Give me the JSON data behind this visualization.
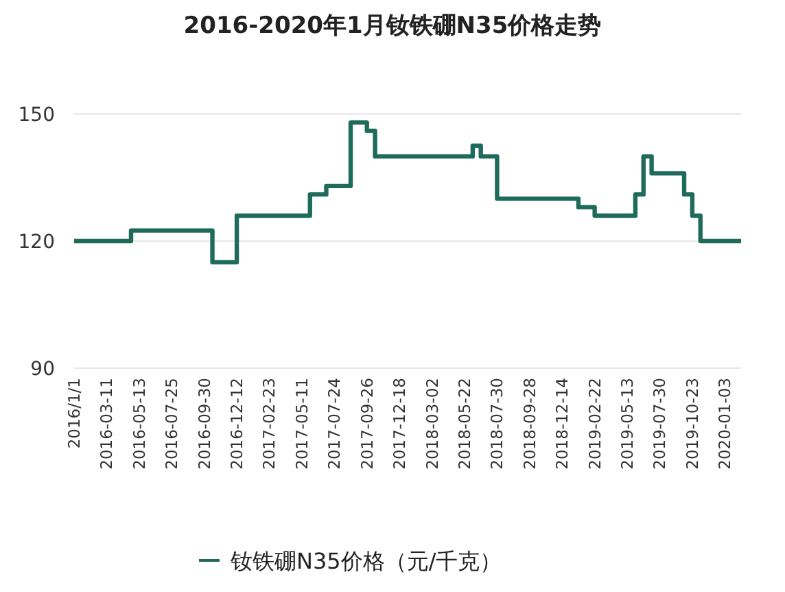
{
  "chart_data": {
    "type": "step",
    "title": "2016-2020年1月钕铁硼N35价格走势",
    "categories": [
      "2016/1/1",
      null,
      null,
      null,
      "2016-03-11",
      null,
      null,
      null,
      "2016-05-13",
      null,
      null,
      null,
      "2016-07-25",
      null,
      null,
      null,
      "2016-09-30",
      null,
      null,
      null,
      "2016-12-12",
      null,
      null,
      null,
      "2017-02-23",
      null,
      null,
      null,
      "2017-05-11",
      null,
      null,
      null,
      "2017-07-24",
      null,
      null,
      null,
      "2017-09-26",
      null,
      null,
      null,
      "2017-12-18",
      null,
      null,
      null,
      "2018-03-02",
      null,
      null,
      null,
      "2018-05-22",
      null,
      null,
      null,
      "2018-07-30",
      null,
      null,
      null,
      "2018-09-28",
      null,
      null,
      null,
      "2018-12-14",
      null,
      null,
      null,
      "2019-02-22",
      null,
      null,
      null,
      "2019-05-13",
      null,
      null,
      null,
      "2019-07-30",
      null,
      null,
      null,
      "2019-10-23",
      null,
      null,
      null,
      "2020-01-03",
      null,
      null
    ],
    "series": [
      {
        "name": "钕铁硼N35价格（元/千克）",
        "color": "#1e6b5c",
        "values": [
          120,
          120,
          120,
          120,
          120,
          120,
          120,
          122.5,
          122.5,
          122.5,
          122.5,
          122.5,
          122.5,
          122.5,
          122.5,
          122.5,
          122.5,
          115,
          115,
          115,
          126,
          126,
          126,
          126,
          126,
          126,
          126,
          126,
          126,
          131,
          131,
          133,
          133,
          133,
          148,
          148,
          146,
          140,
          140,
          140,
          140,
          140,
          140,
          140,
          140,
          140,
          140,
          140,
          140,
          142.5,
          140,
          140,
          130,
          130,
          130,
          130,
          130,
          130,
          130,
          130,
          130,
          130,
          128,
          128,
          126,
          126,
          126,
          126,
          126,
          131,
          140,
          136,
          136,
          136,
          136,
          131,
          126,
          120,
          120,
          120,
          120,
          120,
          120
        ]
      }
    ],
    "ylim": [
      90,
      150
    ],
    "yticks": [
      90,
      120,
      150
    ],
    "grid": "y",
    "legend": "bottom"
  }
}
